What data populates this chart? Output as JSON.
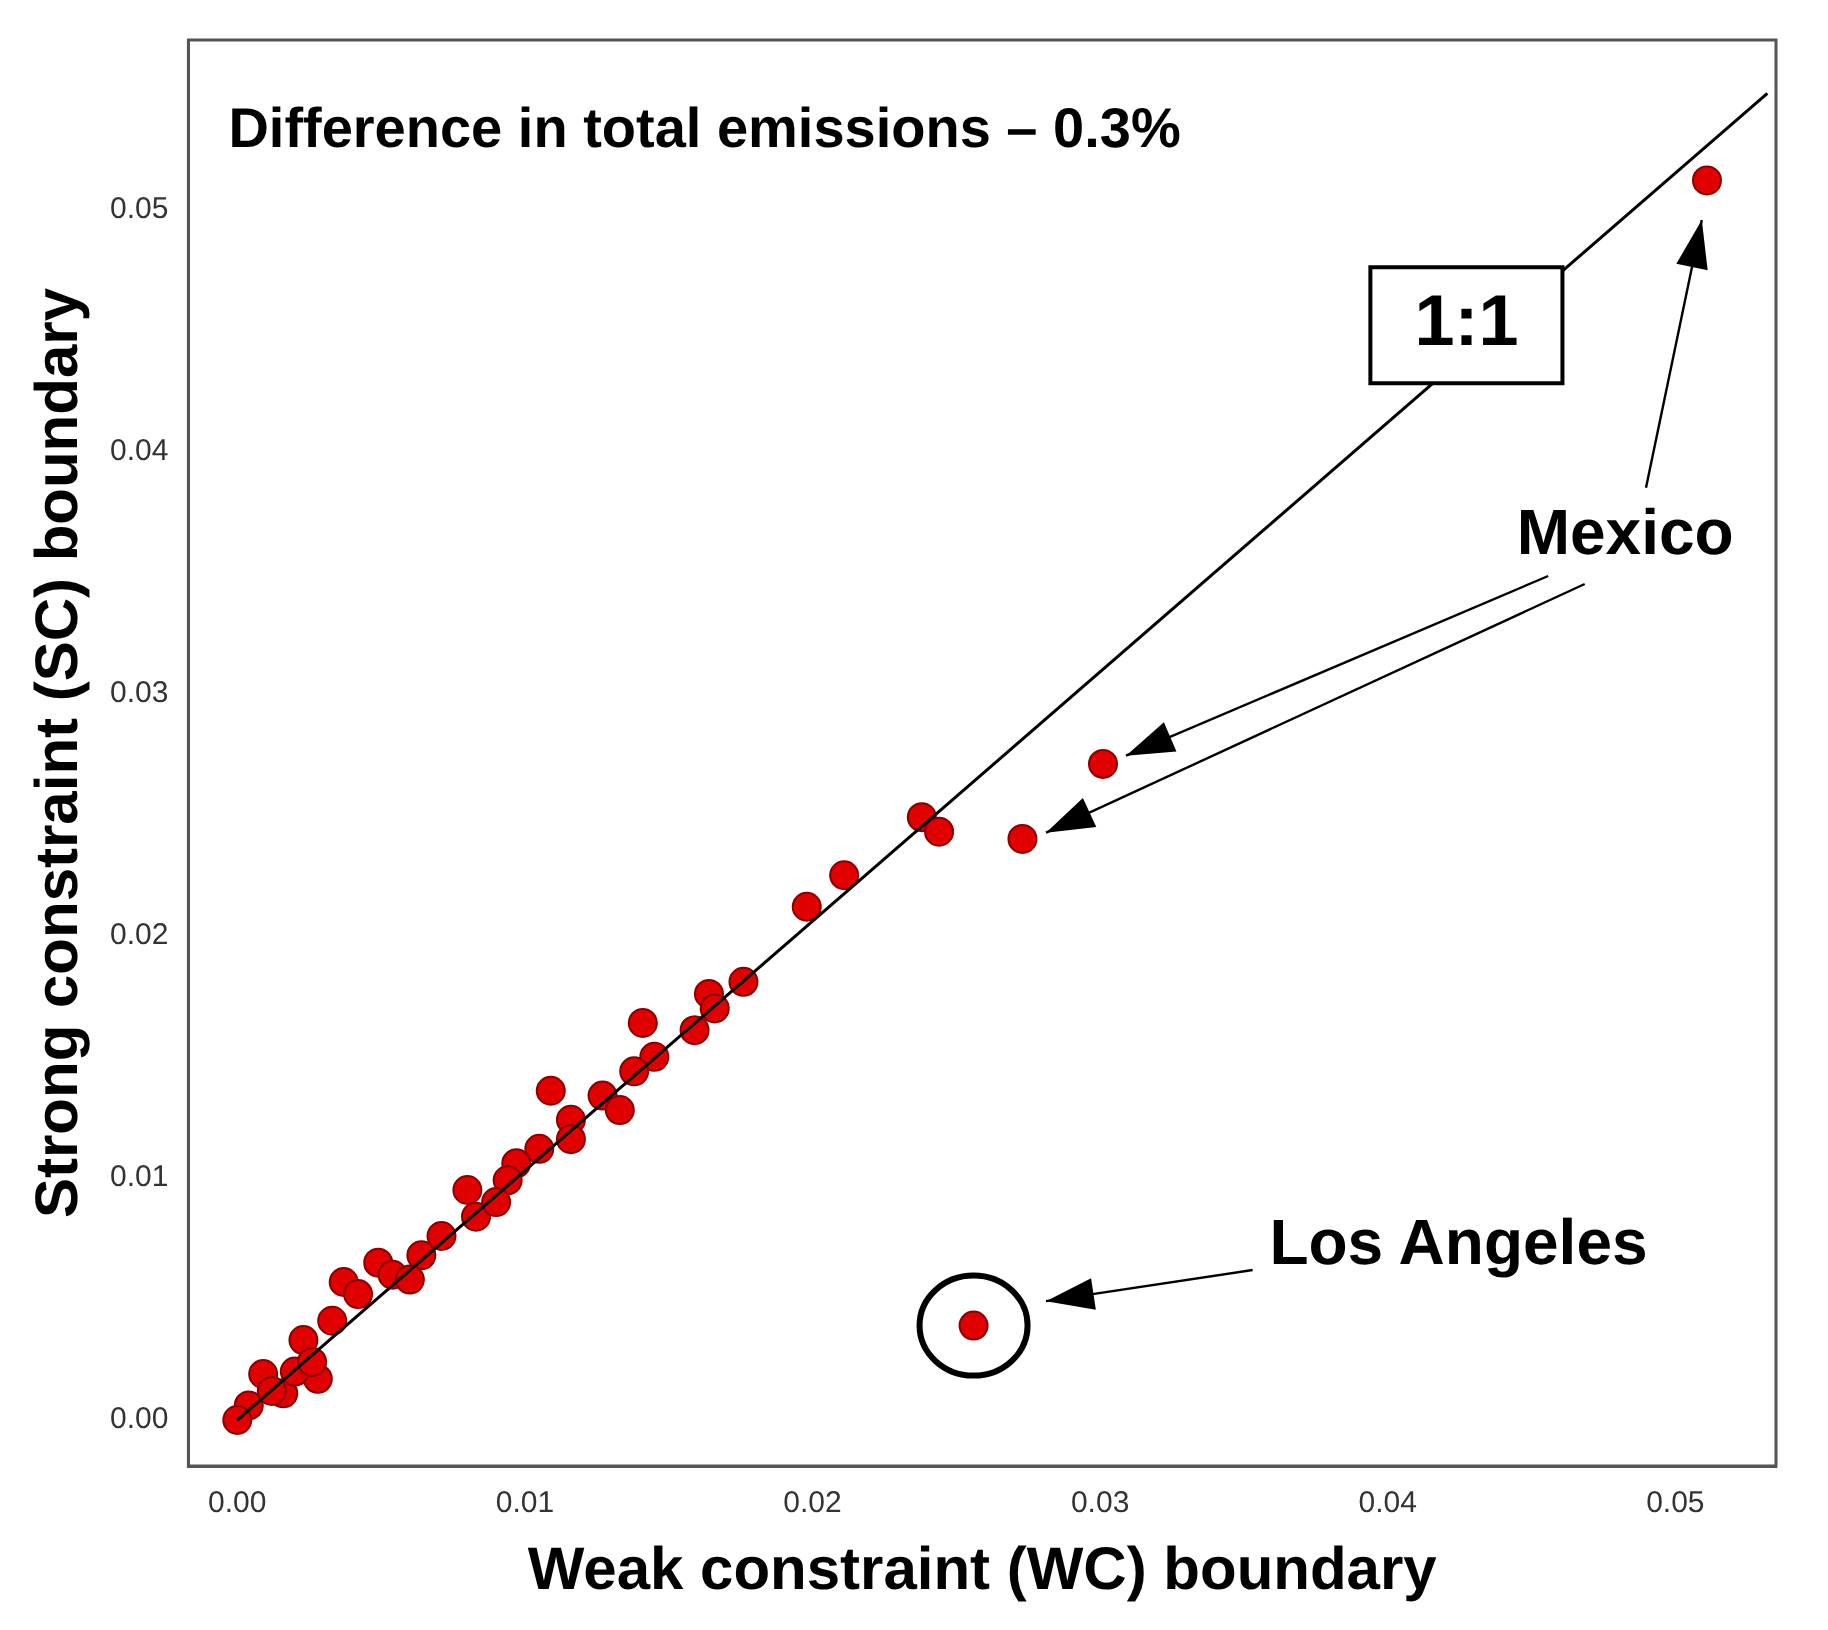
{
  "chart_data": {
    "type": "scatter",
    "xlabel": "Weak constraint (WC) boundary",
    "ylabel": "Strong constraint (SC) boundary",
    "annotations": [
      "Difference in total emissions – 0.3%",
      "1:1",
      "Mexico",
      "Los Angeles"
    ],
    "xlim": [
      -0.0017,
      0.0535
    ],
    "ylim": [
      -0.0019,
      0.057
    ],
    "xticks": [
      {
        "value": 0,
        "label": "0.00"
      },
      {
        "value": 0.01,
        "label": "0.01"
      },
      {
        "value": 0.02,
        "label": "0.02"
      },
      {
        "value": 0.03,
        "label": "0.03"
      },
      {
        "value": 0.04,
        "label": "0.04"
      },
      {
        "value": 0.05,
        "label": "0.05"
      }
    ],
    "yticks": [
      {
        "value": 0,
        "label": "0.00"
      },
      {
        "value": 0.01,
        "label": "0.01"
      },
      {
        "value": 0.02,
        "label": "0.02"
      },
      {
        "value": 0.03,
        "label": "0.03"
      },
      {
        "value": 0.04,
        "label": "0.04"
      },
      {
        "value": 0.05,
        "label": "0.05"
      }
    ],
    "grid": false,
    "legend": false,
    "marker": "circle",
    "series": [
      {
        "color": "#e00000",
        "x": [
          0.0511,
          0.0301,
          0.0273,
          0.0256,
          0.0238,
          0.0244,
          0.0211,
          0.0198,
          0.0176,
          0.0164,
          0.0166,
          0.0159,
          0.0141,
          0.0145,
          0.0138,
          0.0127,
          0.0133,
          0.0109,
          0.0116,
          0.0116,
          0.0105,
          0.0097,
          0.0094,
          0.008,
          0.0083,
          0.0071,
          0.0064,
          0.0049,
          0.0054,
          0.0037,
          0.0042,
          0.0033,
          0.0023,
          0.0028,
          0.0009,
          0.0016,
          0.0004,
          0.0,
          0.0012,
          0.002,
          0.0026,
          0.006,
          0.009
        ],
        "values": [
          0.0512,
          0.0271,
          0.024,
          0.0039,
          0.0249,
          0.0243,
          0.0225,
          0.0212,
          0.0181,
          0.0176,
          0.017,
          0.0161,
          0.0164,
          0.015,
          0.0144,
          0.0134,
          0.0128,
          0.0136,
          0.0124,
          0.0116,
          0.0112,
          0.0106,
          0.0099,
          0.0095,
          0.0084,
          0.0076,
          0.0068,
          0.0065,
          0.006,
          0.0057,
          0.0052,
          0.0041,
          0.0033,
          0.0017,
          0.0019,
          0.0011,
          0.0006,
          0.0,
          0.0012,
          0.002,
          0.0024,
          0.0058,
          0.009
        ]
      },
      {
        "type": "line",
        "color": "#000000",
        "x": [
          0,
          0.0532
        ],
        "values": [
          0,
          0.0548
        ],
        "marker": "none"
      }
    ]
  }
}
